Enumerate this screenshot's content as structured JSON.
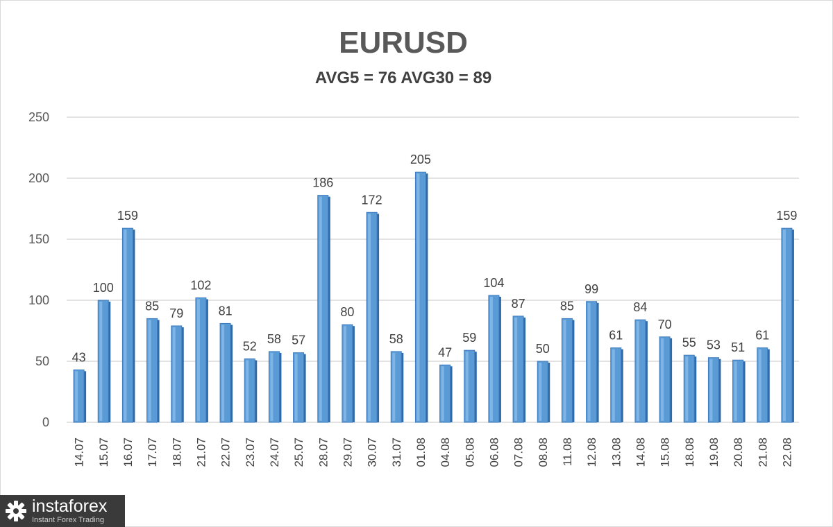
{
  "chart_data": {
    "type": "bar",
    "title": "EURUSD",
    "subtitle": "AVG5 = 76 AVG30 = 89",
    "xlabel": "",
    "ylabel": "",
    "ylim": [
      0,
      250
    ],
    "yticks": [
      0,
      50,
      100,
      150,
      200,
      250
    ],
    "grid": true,
    "legend": "none",
    "bar_color": "#5b9bd5",
    "categories": [
      "14.07",
      "15.07",
      "16.07",
      "17.07",
      "18.07",
      "21.07",
      "22.07",
      "23.07",
      "24.07",
      "25.07",
      "28.07",
      "29.07",
      "30.07",
      "31.07",
      "01.08",
      "04.08",
      "05.08",
      "06.08",
      "07.08",
      "08.08",
      "11.08",
      "12.08",
      "13.08",
      "14.08",
      "15.08",
      "18.08",
      "19.08",
      "20.08",
      "21.08",
      "22.08"
    ],
    "values": [
      43,
      100,
      159,
      85,
      79,
      102,
      81,
      52,
      58,
      57,
      186,
      80,
      172,
      58,
      205,
      47,
      59,
      104,
      87,
      50,
      85,
      99,
      61,
      84,
      70,
      55,
      53,
      51,
      61,
      159
    ]
  },
  "watermark": {
    "name": "instaforex",
    "tagline": "Instant Forex Trading",
    "icon": "gear-logo-icon"
  }
}
